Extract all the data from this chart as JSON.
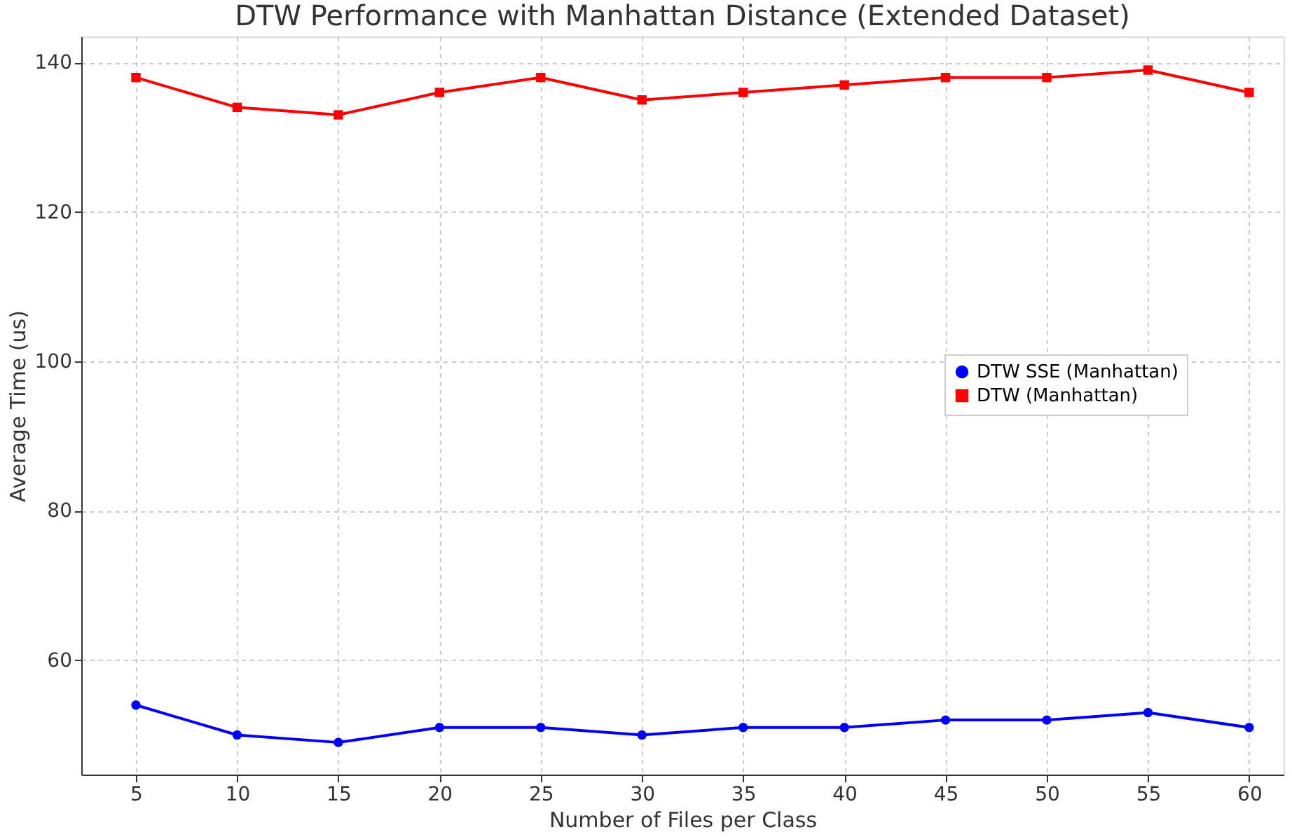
{
  "chart_data": {
    "type": "line",
    "title": "DTW Performance with Manhattan Distance (Extended Dataset)",
    "xlabel": "Number of Files per Class",
    "ylabel": "Average Time (us)",
    "x": [
      5,
      10,
      15,
      20,
      25,
      30,
      35,
      40,
      45,
      50,
      55,
      60
    ],
    "xlim": [
      2.3,
      61.7
    ],
    "xticks": [
      5,
      10,
      15,
      20,
      25,
      30,
      35,
      40,
      45,
      50,
      55,
      60
    ],
    "ylim": [
      44.7,
      143.5
    ],
    "yticks": [
      60,
      80,
      100,
      120,
      140
    ],
    "grid": true,
    "legend": "right",
    "line_style": "solid",
    "series": [
      {
        "name": "DTW SSE (Manhattan)",
        "color": "#0000ff",
        "marker": "circle",
        "values": [
          54,
          50,
          49,
          51,
          51,
          50,
          51,
          51,
          52,
          52,
          53,
          51
        ]
      },
      {
        "name": "DTW (Manhattan)",
        "color": "#ff0000",
        "marker": "square",
        "values": [
          138,
          134,
          133,
          136,
          138,
          135,
          136,
          137,
          138,
          138,
          139,
          136
        ]
      }
    ]
  }
}
